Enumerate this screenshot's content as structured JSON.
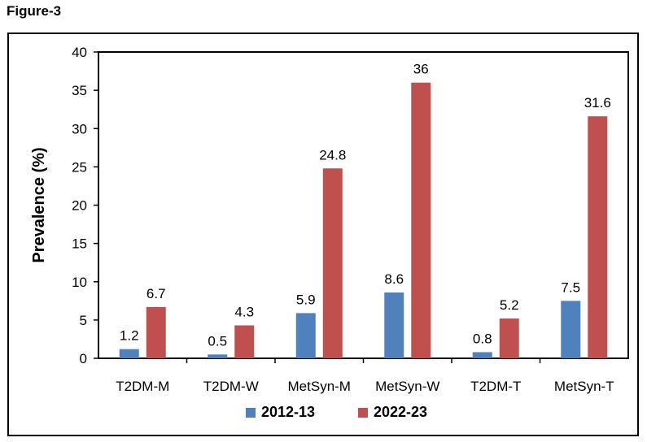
{
  "figure_label": "Figure-3",
  "chart_data": {
    "type": "bar",
    "ylabel": "Prevalence (%)",
    "xlabel": "",
    "ylim": [
      0,
      40
    ],
    "yticks": [
      0,
      5,
      10,
      15,
      20,
      25,
      30,
      35,
      40
    ],
    "categories": [
      "T2DM-M",
      "T2DM-W",
      "MetSyn-M",
      "MetSyn-W",
      "T2DM-T",
      "MetSyn-T"
    ],
    "series": [
      {
        "name": "2012-13",
        "color": "#4f81bd",
        "values": [
          1.2,
          0.5,
          5.9,
          8.6,
          0.8,
          7.5
        ],
        "labels": [
          "1.2",
          "0.5",
          "5.9",
          "8.6",
          "0.8",
          "7.5"
        ]
      },
      {
        "name": "2022-23",
        "color": "#c0504d",
        "values": [
          6.7,
          4.3,
          24.8,
          36,
          5.2,
          31.6
        ],
        "labels": [
          "6.7",
          "4.3",
          "24.8",
          "36",
          "5.2",
          "31.6"
        ]
      }
    ],
    "grid": false,
    "legend_position": "bottom"
  }
}
